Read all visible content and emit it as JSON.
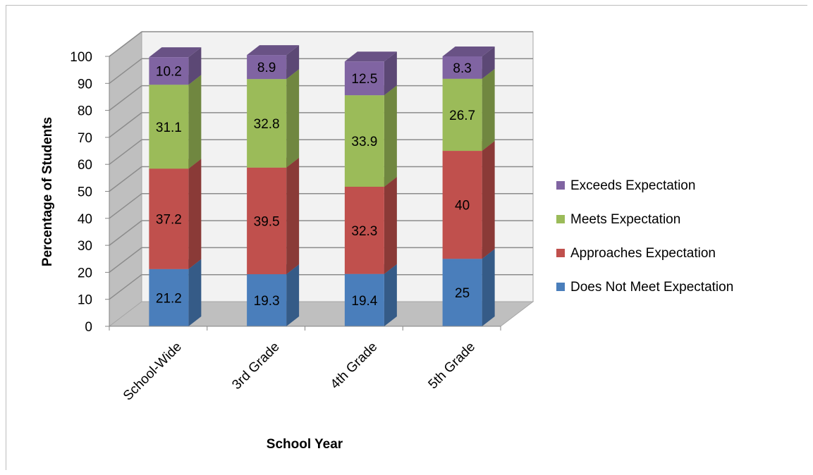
{
  "chart_data": {
    "type": "bar",
    "stacked": true,
    "three_d": true,
    "categories": [
      "School-Wide",
      "3rd Grade",
      "4th Grade",
      "5th Grade"
    ],
    "series": [
      {
        "name": "Does Not Meet Expectation",
        "color": "#4a7ebb",
        "values": [
          21.2,
          19.3,
          19.4,
          25
        ]
      },
      {
        "name": "Approaches Expectation",
        "color": "#c0504d",
        "values": [
          37.2,
          39.5,
          32.3,
          40
        ]
      },
      {
        "name": "Meets Expectation",
        "color": "#9bbb59",
        "values": [
          31.1,
          32.8,
          33.9,
          26.7
        ]
      },
      {
        "name": "Exceeds Expectation",
        "color": "#8064a2",
        "values": [
          10.2,
          8.9,
          12.5,
          8.3
        ]
      }
    ],
    "value_labels": [
      [
        "21.2",
        "37.2",
        "31.1",
        "10.2"
      ],
      [
        "19.3",
        "39.5",
        "32.8",
        "8.9"
      ],
      [
        "19.4",
        "32.3",
        "33.9",
        "12.5"
      ],
      [
        "25",
        "40",
        "26.7",
        "8.3"
      ]
    ],
    "xlabel": "School Year",
    "ylabel": "Percentage of Students",
    "ylim": [
      0,
      100
    ],
    "yticks": [
      0,
      10,
      20,
      30,
      40,
      50,
      60,
      70,
      80,
      90,
      100
    ],
    "grid": true,
    "legend_position": "right"
  }
}
